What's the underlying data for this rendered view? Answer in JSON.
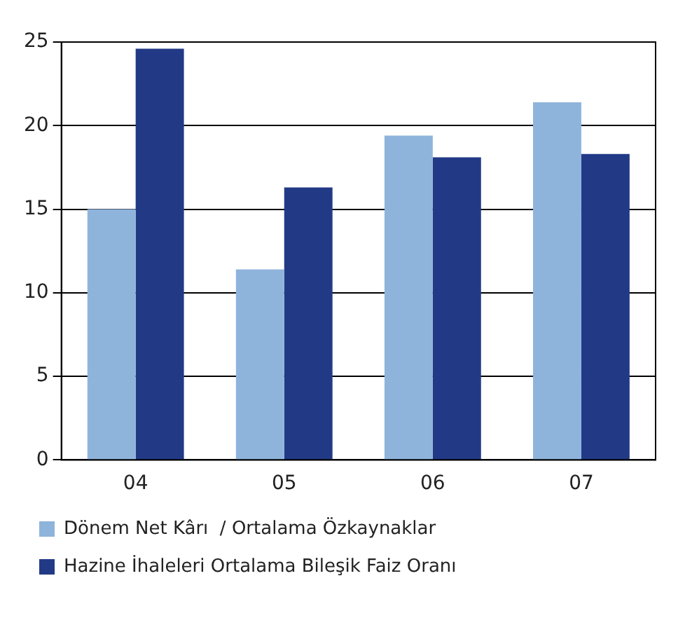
{
  "chart_data": {
    "type": "bar",
    "categories": [
      "04",
      "05",
      "06",
      "07"
    ],
    "series": [
      {
        "name": "Dönem Net Kârı  / Ortalama Özkaynaklar",
        "color": "#8fb4dc",
        "values": [
          15,
          11.4,
          19.4,
          21.4
        ]
      },
      {
        "name": "Hazine İhaleleri Ortalama Bileşik Faiz Oranı",
        "color": "#223a86",
        "values": [
          24.6,
          16.3,
          18.1,
          18.3
        ]
      }
    ],
    "ylim": [
      0,
      25
    ],
    "yticks": [
      0,
      5,
      10,
      15,
      20,
      25
    ],
    "grid": "y",
    "legend": "bottom"
  }
}
